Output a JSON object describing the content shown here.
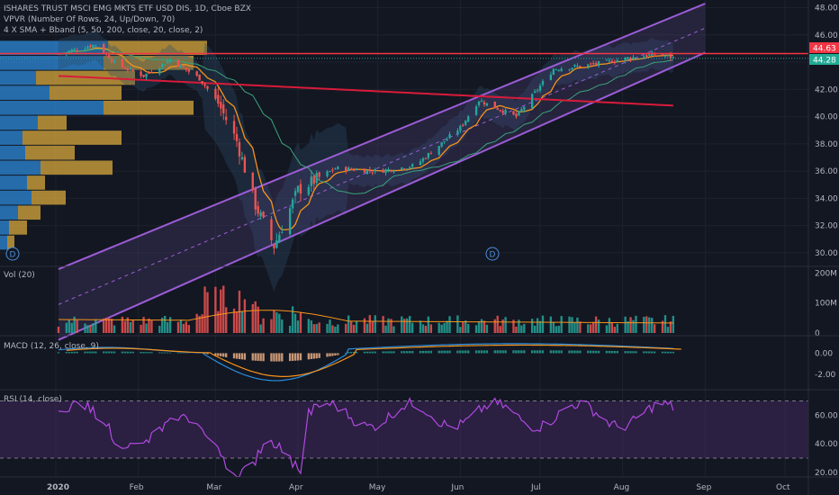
{
  "header": {
    "title": "ISHARES TRUST MSCI EMG MKTS ETF USD DIS, 1D, Cboe BZX",
    "vpvr": "VPVR (Number Of Rows, 24, Up/Down, 70)",
    "sma": "4 X SMA + Bband (5, 50, 200, close, 20, close, 2)"
  },
  "panes": {
    "vol": "Vol (20)",
    "macd": "MACD (12, 26, close, 9)",
    "rsi": "RSI (14, close)"
  },
  "price_tags": {
    "red": "44.63",
    "green": "44.28"
  },
  "dividend_marker": "D",
  "colors": {
    "up": "#26a69a",
    "down": "#ef5350",
    "channel": "#9c5cd6",
    "sma5": "#f7931a",
    "sma50": "#3aa37a",
    "sma200": "#d81b3a",
    "bband": "#5b7fa6",
    "vpvr_up": "#2e8ad8",
    "vpvr_down": "#d9a93c",
    "rsi": "#b04ae0",
    "macd": "#2a8fe0",
    "signal": "#f7931a"
  },
  "chart_data": [
    {
      "type": "candlestick",
      "title": "ISHARES TRUST MSCI EMG MKTS ETF USD DIS, 1D, Cboe BZX",
      "x_ticks": [
        "2020",
        "Feb",
        "Mar",
        "Apr",
        "May",
        "Jun",
        "Jul",
        "Aug",
        "Sep",
        "Oct"
      ],
      "y_ticks": [
        30,
        32,
        34,
        36,
        38,
        40,
        42,
        44,
        46,
        48
      ],
      "ylim": [
        29,
        48.3
      ],
      "approx_close_path": [
        {
          "x": "Jan 2",
          "y": 44.6
        },
        {
          "x": "Jan 16",
          "y": 45.3
        },
        {
          "x": "Jan 24",
          "y": 43.8
        },
        {
          "x": "Feb 3",
          "y": 43.0
        },
        {
          "x": "Feb 13",
          "y": 44.2
        },
        {
          "x": "Feb 24",
          "y": 42.8
        },
        {
          "x": "Mar 2",
          "y": 41.0
        },
        {
          "x": "Mar 9",
          "y": 38.2
        },
        {
          "x": "Mar 16",
          "y": 33.5
        },
        {
          "x": "Mar 23",
          "y": 30.5
        },
        {
          "x": "Apr 1",
          "y": 34.6
        },
        {
          "x": "Apr 15",
          "y": 36.2
        },
        {
          "x": "May 1",
          "y": 36.0
        },
        {
          "x": "May 15",
          "y": 36.4
        },
        {
          "x": "Jun 1",
          "y": 39.2
        },
        {
          "x": "Jun 8",
          "y": 41.2
        },
        {
          "x": "Jun 22",
          "y": 40.0
        },
        {
          "x": "Jul 6",
          "y": 43.5
        },
        {
          "x": "Jul 20",
          "y": 43.8
        },
        {
          "x": "Aug 3",
          "y": 44.3
        },
        {
          "x": "Aug 14",
          "y": 44.6
        },
        {
          "x": "Aug 21",
          "y": 44.28
        }
      ],
      "channel": {
        "start": {
          "x": "Jan 2",
          "lower": 23.6,
          "upper": 28.8
        },
        "end": {
          "x": "Sep 1",
          "lower": 44.7,
          "upper": 48.3
        }
      },
      "horizontal_line": 44.63,
      "last_price": 44.28
    },
    {
      "type": "bar",
      "title": "Vol (20)",
      "y_ticks": [
        "0",
        "100M",
        "200M"
      ],
      "ylim": [
        0,
        210
      ],
      "unit": "M"
    },
    {
      "type": "line",
      "title": "MACD (12, 26, close, 9)",
      "y_ticks": [
        "-2.00",
        "0.00"
      ],
      "ylim": [
        -3.2,
        1.4
      ]
    },
    {
      "type": "line",
      "title": "RSI (14, close)",
      "y_ticks": [
        "20.00",
        "40.00",
        "60.00"
      ],
      "ylim": [
        18,
        76
      ],
      "bands": [
        30,
        70
      ]
    }
  ]
}
